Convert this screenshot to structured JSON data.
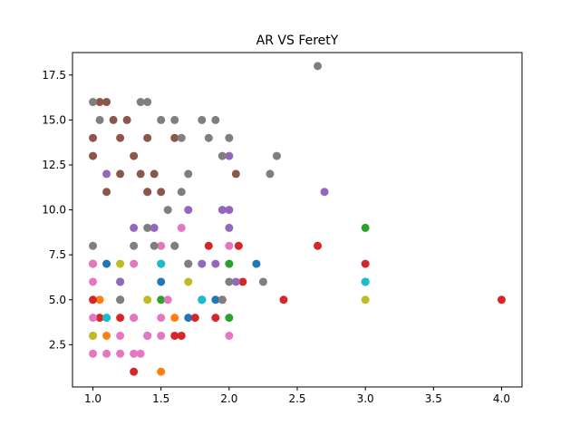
{
  "chart_data": {
    "type": "scatter",
    "title": "AR VS FeretY",
    "xlabel": "",
    "ylabel": "",
    "xlim": [
      0.85,
      4.15
    ],
    "ylim": [
      0.15,
      18.75
    ],
    "xticks": [
      1.0,
      1.5,
      2.0,
      2.5,
      3.0,
      3.5,
      4.0
    ],
    "xtick_labels": [
      "1.0",
      "1.5",
      "2.0",
      "2.5",
      "3.0",
      "3.5",
      "4.0"
    ],
    "yticks": [
      2.5,
      5.0,
      7.5,
      10.0,
      12.5,
      15.0,
      17.5
    ],
    "ytick_labels": [
      "2.5",
      "5.0",
      "7.5",
      "10.0",
      "12.5",
      "15.0",
      "17.5"
    ],
    "grid": false,
    "legend": false,
    "series": [
      {
        "color": "#1f77b4",
        "points": [
          [
            1.2,
            5
          ],
          [
            1.5,
            6
          ],
          [
            1.7,
            4
          ],
          [
            1.8,
            5
          ],
          [
            1.9,
            5
          ],
          [
            2.2,
            7
          ],
          [
            3.0,
            6
          ],
          [
            1.4,
            3
          ],
          [
            1.1,
            7
          ]
        ]
      },
      {
        "color": "#ff7f0e",
        "points": [
          [
            1.5,
            1
          ],
          [
            1.1,
            3
          ],
          [
            1.3,
            4
          ],
          [
            1.05,
            5
          ],
          [
            1.6,
            4
          ]
        ]
      },
      {
        "color": "#2ca02c",
        "points": [
          [
            3.0,
            9
          ],
          [
            2.0,
            4
          ],
          [
            1.0,
            7
          ],
          [
            2.0,
            7
          ],
          [
            1.5,
            5
          ],
          [
            1.2,
            6
          ]
        ]
      },
      {
        "color": "#d62728",
        "points": [
          [
            1.3,
            1
          ],
          [
            4.0,
            5
          ],
          [
            3.0,
            7
          ],
          [
            2.65,
            8
          ],
          [
            2.4,
            5
          ],
          [
            2.1,
            6
          ],
          [
            2.07,
            8
          ],
          [
            1.9,
            4
          ],
          [
            1.65,
            3
          ],
          [
            1.6,
            3
          ],
          [
            1.85,
            8
          ],
          [
            1.95,
            5
          ],
          [
            1.2,
            4
          ],
          [
            1.05,
            4
          ],
          [
            1.75,
            4
          ],
          [
            1.0,
            5
          ]
        ]
      },
      {
        "color": "#9467bd",
        "points": [
          [
            2.7,
            11
          ],
          [
            2.0,
            13
          ],
          [
            2.0,
            10
          ],
          [
            2.0,
            9
          ],
          [
            1.95,
            10
          ],
          [
            1.9,
            7
          ],
          [
            2.05,
            6
          ],
          [
            1.6,
            8
          ],
          [
            1.4,
            11
          ],
          [
            1.3,
            9
          ],
          [
            1.7,
            10
          ],
          [
            1.2,
            6
          ],
          [
            1.5,
            7
          ],
          [
            1.1,
            12
          ],
          [
            1.8,
            7
          ],
          [
            1.45,
            9
          ]
        ]
      },
      {
        "color": "#8c564b",
        "points": [
          [
            1.05,
            16
          ],
          [
            1.1,
            16
          ],
          [
            1.15,
            15
          ],
          [
            1.2,
            14
          ],
          [
            1.3,
            13
          ],
          [
            1.35,
            12
          ],
          [
            1.4,
            11
          ],
          [
            1.1,
            11
          ],
          [
            1.0,
            13
          ],
          [
            1.25,
            15
          ],
          [
            1.45,
            12
          ],
          [
            1.6,
            14
          ],
          [
            2.05,
            12
          ],
          [
            1.0,
            14
          ],
          [
            1.2,
            12
          ],
          [
            1.4,
            14
          ],
          [
            1.5,
            11
          ]
        ]
      },
      {
        "color": "#e377c2",
        "points": [
          [
            1.0,
            2
          ],
          [
            1.1,
            2
          ],
          [
            1.2,
            2
          ],
          [
            1.3,
            2
          ],
          [
            1.35,
            2
          ],
          [
            1.0,
            3
          ],
          [
            1.2,
            3
          ],
          [
            1.4,
            3
          ],
          [
            1.5,
            3
          ],
          [
            1.0,
            4
          ],
          [
            1.3,
            4
          ],
          [
            1.5,
            4
          ],
          [
            1.0,
            7
          ],
          [
            1.3,
            7
          ],
          [
            1.7,
            7
          ],
          [
            2.0,
            3
          ],
          [
            2.0,
            8
          ],
          [
            1.65,
            9
          ],
          [
            1.0,
            6
          ],
          [
            1.5,
            8
          ],
          [
            1.55,
            5
          ]
        ]
      },
      {
        "color": "#7f7f7f",
        "points": [
          [
            2.65,
            18
          ],
          [
            1.0,
            16
          ],
          [
            1.35,
            16
          ],
          [
            1.4,
            16
          ],
          [
            1.05,
            15
          ],
          [
            1.5,
            15
          ],
          [
            1.6,
            15
          ],
          [
            1.8,
            15
          ],
          [
            1.9,
            15
          ],
          [
            1.65,
            14
          ],
          [
            1.85,
            14
          ],
          [
            2.0,
            14
          ],
          [
            2.35,
            13
          ],
          [
            1.95,
            13
          ],
          [
            2.3,
            12
          ],
          [
            1.7,
            12
          ],
          [
            1.65,
            11
          ],
          [
            1.55,
            10
          ],
          [
            1.4,
            9
          ],
          [
            2.25,
            6
          ],
          [
            1.1,
            4
          ],
          [
            1.2,
            5
          ],
          [
            1.8,
            5
          ],
          [
            1.95,
            5
          ],
          [
            2.0,
            6
          ],
          [
            1.6,
            8
          ],
          [
            1.45,
            8
          ],
          [
            1.3,
            8
          ],
          [
            1.7,
            7
          ],
          [
            1.0,
            8
          ]
        ]
      },
      {
        "color": "#bcbd22",
        "points": [
          [
            3.0,
            5
          ],
          [
            1.2,
            7
          ],
          [
            1.0,
            3
          ],
          [
            1.4,
            5
          ],
          [
            1.7,
            6
          ]
        ]
      },
      {
        "color": "#17becf",
        "points": [
          [
            3.0,
            6
          ],
          [
            1.8,
            5
          ],
          [
            1.1,
            4
          ],
          [
            1.5,
            7
          ]
        ]
      }
    ]
  }
}
